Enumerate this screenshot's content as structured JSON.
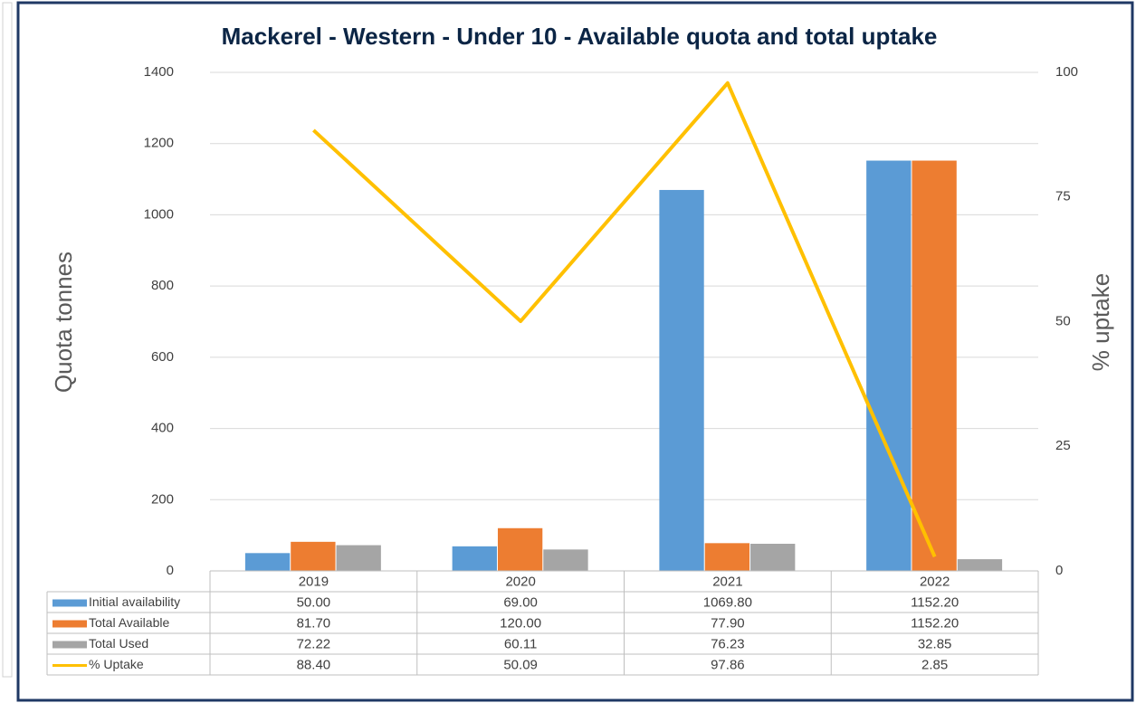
{
  "chart_data": {
    "type": "bar",
    "title": "Mackerel - Western - Under 10 - Available quota and total uptake",
    "ylabel": "Quota tonnes",
    "y2label": "% uptake",
    "categories": [
      "2019",
      "2020",
      "2021",
      "2022"
    ],
    "series": [
      {
        "name": "Initial availability",
        "color": "#5b9bd5",
        "values": [
          50,
          69,
          1069.8,
          1152.2
        ],
        "value_labels": [
          "50.00",
          "69.00",
          "1069.80",
          "1152.20"
        ]
      },
      {
        "name": "Total Available",
        "color": "#ed7d31",
        "values": [
          81.7,
          120,
          77.9,
          1152.2
        ],
        "value_labels": [
          "81.70",
          "120.00",
          "77.90",
          "1152.20"
        ]
      },
      {
        "name": "Total Used",
        "color": "#a5a5a5",
        "values": [
          72.22,
          60.11,
          76.23,
          32.85
        ],
        "value_labels": [
          "72.22",
          "60.11",
          "76.23",
          "32.85"
        ]
      },
      {
        "name": "% Uptake",
        "color": "#ffc000",
        "type": "line",
        "axis": "y2",
        "values": [
          88.4,
          50.09,
          97.86,
          2.85
        ],
        "value_labels": [
          "88.40",
          "50.09",
          "97.86",
          "2.85"
        ]
      }
    ],
    "ylim": [
      0,
      1400
    ],
    "yticks": [
      0,
      200,
      400,
      600,
      800,
      1000,
      1200,
      1400
    ],
    "y2lim": [
      0,
      100
    ],
    "y2ticks": [
      0,
      25,
      50,
      75,
      100
    ],
    "grid": true
  }
}
